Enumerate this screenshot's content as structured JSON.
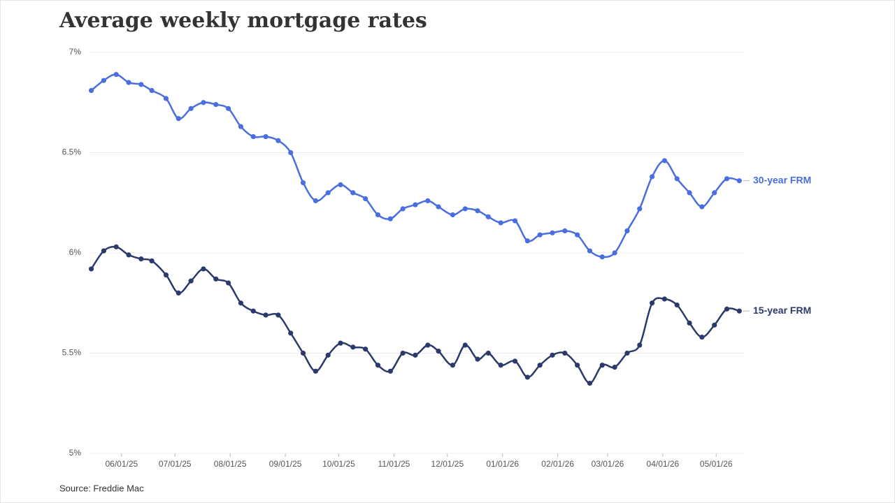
{
  "chart_data": {
    "type": "line",
    "title": "Average weekly mortgage rates",
    "source": "Source: Freddie Mac",
    "x": [
      "05/15/25",
      "05/22/25",
      "05/29/25",
      "06/05/25",
      "06/12/25",
      "06/18/25",
      "06/26/25",
      "07/03/25",
      "07/10/25",
      "07/17/25",
      "07/24/25",
      "07/31/25",
      "08/07/25",
      "08/14/25",
      "08/21/25",
      "08/28/25",
      "09/04/25",
      "09/11/25",
      "09/18/25",
      "09/25/25",
      "10/02/25",
      "10/09/25",
      "10/16/25",
      "10/23/25",
      "10/30/25",
      "11/06/25",
      "11/13/25",
      "11/20/25",
      "11/26/25",
      "12/04/25",
      "12/11/25",
      "12/18/25",
      "12/24/25",
      "12/31/25",
      "01/08/26",
      "01/15/26",
      "01/22/26",
      "01/29/26",
      "02/05/26",
      "02/12/26",
      "02/19/26",
      "02/26/26",
      "03/05/26",
      "03/12/26",
      "03/19/26",
      "03/26/26",
      "04/02/26",
      "04/09/26",
      "04/16/26",
      "04/23/26",
      "04/30/26",
      "05/07/26",
      "05/14/26"
    ],
    "series": [
      {
        "name": "30-year FRM",
        "color": "#4a6ee0",
        "values": [
          6.81,
          6.86,
          6.89,
          6.85,
          6.84,
          6.81,
          6.77,
          6.67,
          6.72,
          6.75,
          6.74,
          6.72,
          6.63,
          6.58,
          6.58,
          6.56,
          6.5,
          6.35,
          6.26,
          6.3,
          6.34,
          6.3,
          6.27,
          6.19,
          6.17,
          6.22,
          6.24,
          6.26,
          6.23,
          6.19,
          6.22,
          6.21,
          6.18,
          6.15,
          6.16,
          6.06,
          6.09,
          6.1,
          6.11,
          6.09,
          6.01,
          5.98,
          6.0,
          6.11,
          6.22,
          6.38,
          6.46,
          6.37,
          6.3,
          6.23,
          6.3,
          6.37,
          6.36
        ]
      },
      {
        "name": "15-year FRM",
        "color": "#2b3a6b",
        "values": [
          5.92,
          6.01,
          6.03,
          5.99,
          5.97,
          5.96,
          5.89,
          5.8,
          5.86,
          5.92,
          5.87,
          5.85,
          5.75,
          5.71,
          5.69,
          5.69,
          5.6,
          5.5,
          5.41,
          5.49,
          5.55,
          5.53,
          5.52,
          5.44,
          5.41,
          5.5,
          5.49,
          5.54,
          5.51,
          5.44,
          5.54,
          5.47,
          5.5,
          5.44,
          5.46,
          5.38,
          5.44,
          5.49,
          5.5,
          5.44,
          5.35,
          5.44,
          5.43,
          5.5,
          5.54,
          5.75,
          5.77,
          5.74,
          5.65,
          5.58,
          5.64,
          5.72,
          5.71
        ]
      }
    ],
    "xlim": [
      "05/14/25",
      "05/17/26"
    ],
    "xticks": [
      "06/01/25",
      "07/01/25",
      "08/01/25",
      "09/01/25",
      "10/01/25",
      "11/01/25",
      "12/01/25",
      "01/01/26",
      "02/01/26",
      "03/01/26",
      "04/01/26",
      "05/01/26"
    ],
    "ylim": [
      5,
      7
    ],
    "yticks": [
      {
        "value": 5,
        "label": "5%"
      },
      {
        "value": 5.5,
        "label": "5.5%"
      },
      {
        "value": 6,
        "label": "6%"
      },
      {
        "value": 6.5,
        "label": "6.5%"
      },
      {
        "value": 7,
        "label": "7%"
      }
    ],
    "grid": true,
    "smooth": true
  }
}
